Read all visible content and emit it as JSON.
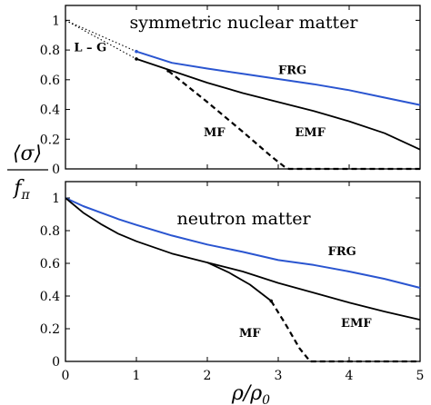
{
  "chart_data": [
    {
      "type": "line",
      "title": "symmetric nuclear matter",
      "xlim": [
        0,
        5
      ],
      "ylim": [
        0,
        1.1
      ],
      "yticks": [
        "0",
        "0.2",
        "0.4",
        "0.6",
        "0.8",
        "1"
      ],
      "grid": false,
      "series": [
        {
          "name": "FRG",
          "color": "#2a55d0",
          "style": "solid",
          "x": [
            1.0,
            1.5,
            2.0,
            2.5,
            3.0,
            3.5,
            4.0,
            4.5,
            5.0
          ],
          "y": [
            0.79,
            0.714,
            0.675,
            0.64,
            0.605,
            0.57,
            0.53,
            0.48,
            0.43
          ]
        },
        {
          "name": "EMF",
          "color": "#000000",
          "style": "solid",
          "x": [
            1.0,
            1.5,
            2.0,
            2.5,
            3.0,
            3.5,
            4.0,
            4.5,
            5.0
          ],
          "y": [
            0.74,
            0.66,
            0.58,
            0.51,
            0.45,
            0.39,
            0.32,
            0.24,
            0.13
          ]
        },
        {
          "name": "MF",
          "color": "#000000",
          "style": "dashed",
          "x": [
            1.45,
            2.0,
            2.5,
            2.9,
            3.1,
            3.15,
            5.0
          ],
          "y": [
            0.66,
            0.45,
            0.25,
            0.085,
            0.01,
            0.0,
            0.0
          ]
        },
        {
          "name": "L – G",
          "color": "#000000",
          "style": "dotted",
          "x": [
            0.0,
            1.0
          ],
          "y": [
            1.0,
            0.74
          ]
        },
        {
          "name": "",
          "color": "#000000",
          "style": "dotted",
          "x": [
            0.0,
            1.0
          ],
          "y": [
            1.0,
            0.79
          ]
        }
      ],
      "annotations": [
        {
          "text": "L – G",
          "x": 0.35,
          "y": 0.79
        },
        {
          "text": "FRG",
          "x": 3.2,
          "y": 0.64
        },
        {
          "text": "MF",
          "x": 2.1,
          "y": 0.22
        },
        {
          "text": "EMF",
          "x": 3.45,
          "y": 0.22
        }
      ]
    },
    {
      "type": "line",
      "title": "neutron matter",
      "xlim": [
        0,
        5
      ],
      "ylim": [
        0,
        1.1
      ],
      "yticks": [
        "0",
        "0.2",
        "0.4",
        "0.6",
        "0.8",
        "1"
      ],
      "xticks": [
        "0",
        "1",
        "2",
        "3",
        "4",
        "5"
      ],
      "grid": false,
      "series": [
        {
          "name": "FRG",
          "color": "#2a55d0",
          "style": "solid",
          "x": [
            0.0,
            0.25,
            0.5,
            0.75,
            1.0,
            1.5,
            2.0,
            2.5,
            3.0,
            3.5,
            4.0,
            4.5,
            5.0
          ],
          "y": [
            1.0,
            0.95,
            0.91,
            0.87,
            0.835,
            0.77,
            0.715,
            0.67,
            0.62,
            0.59,
            0.55,
            0.505,
            0.45
          ]
        },
        {
          "name": "EMF",
          "color": "#000000",
          "style": "solid",
          "x": [
            0.0,
            0.25,
            0.5,
            0.75,
            1.0,
            1.5,
            2.0,
            2.5,
            3.0,
            3.5,
            4.0,
            4.5,
            5.0
          ],
          "y": [
            1.0,
            0.91,
            0.84,
            0.78,
            0.735,
            0.66,
            0.605,
            0.55,
            0.48,
            0.42,
            0.36,
            0.305,
            0.255
          ]
        },
        {
          "name": "MF",
          "color": "#000000",
          "style": "solid",
          "x": [
            2.0,
            2.3,
            2.6,
            2.9
          ],
          "y": [
            0.605,
            0.545,
            0.47,
            0.37
          ]
        },
        {
          "name": "MF",
          "color": "#000000",
          "style": "dashed",
          "x": [
            2.9,
            3.1,
            3.3,
            3.45,
            5.0
          ],
          "y": [
            0.37,
            0.23,
            0.08,
            0.0,
            0.0
          ]
        }
      ],
      "annotations": [
        {
          "text": "FRG",
          "x": 3.9,
          "y": 0.65
        },
        {
          "text": "MF",
          "x": 2.6,
          "y": 0.15
        },
        {
          "text": "EMF",
          "x": 4.1,
          "y": 0.21
        }
      ]
    }
  ],
  "ylabel_top": "⟨σ⟩",
  "ylabel_bottom": "f",
  "ylabel_sub": "π",
  "xlabel_main": "ρ/ρ",
  "xlabel_sub": "0"
}
